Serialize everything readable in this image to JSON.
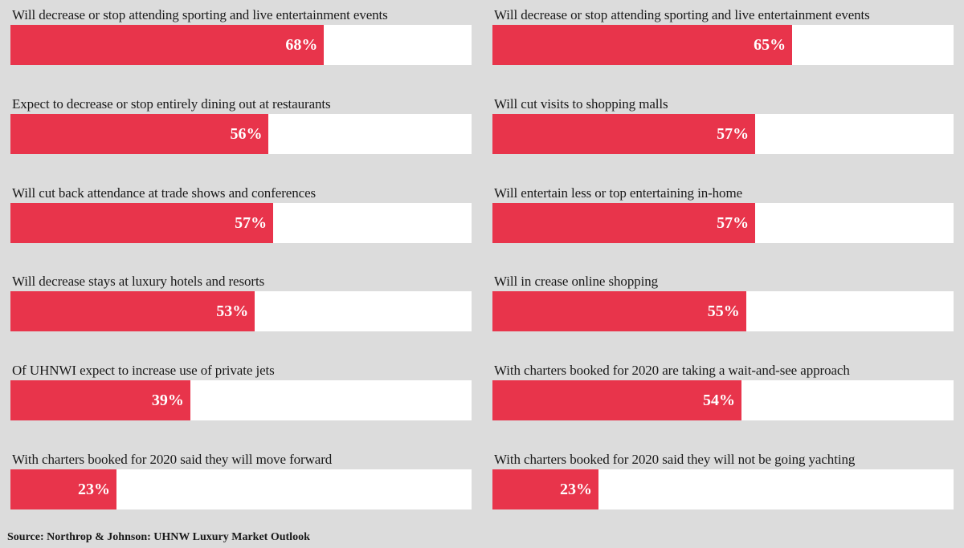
{
  "chart_data": [
    {
      "type": "bar",
      "orientation": "horizontal",
      "xlim": [
        0,
        100
      ],
      "categories": [
        "Will decrease or stop attending sporting and live entertainment events",
        "Expect to decrease or stop entirely dining out at restaurants",
        "Will cut back attendance at trade shows and conferences",
        "Will decrease stays at luxury hotels and resorts",
        "Of UHNWI expect to increase use of private jets",
        "With charters booked for 2020 said they will move forward"
      ],
      "values": [
        68,
        56,
        57,
        53,
        39,
        23
      ],
      "value_labels": [
        "68%",
        "56%",
        "57%",
        "53%",
        "39%",
        "23%"
      ]
    },
    {
      "type": "bar",
      "orientation": "horizontal",
      "xlim": [
        0,
        100
      ],
      "categories": [
        "Will decrease or stop attending sporting and live entertainment events",
        "Will cut visits to shopping malls",
        "Will entertain less or top entertaining in-home",
        "Will in crease online shopping",
        "With charters booked for 2020 are taking a wait-and-see approach",
        "With charters booked for 2020 said they will not be going yachting"
      ],
      "values": [
        65,
        57,
        57,
        55,
        54,
        23
      ],
      "value_labels": [
        "65%",
        "57%",
        "57%",
        "55%",
        "54%",
        "23%"
      ]
    }
  ],
  "colors": {
    "bar_fill": "#e8344b",
    "bar_track": "#ffffff",
    "background": "#dcdcdc"
  },
  "source": "Source: Northrop & Johnson: UHNW Luxury Market Outlook"
}
